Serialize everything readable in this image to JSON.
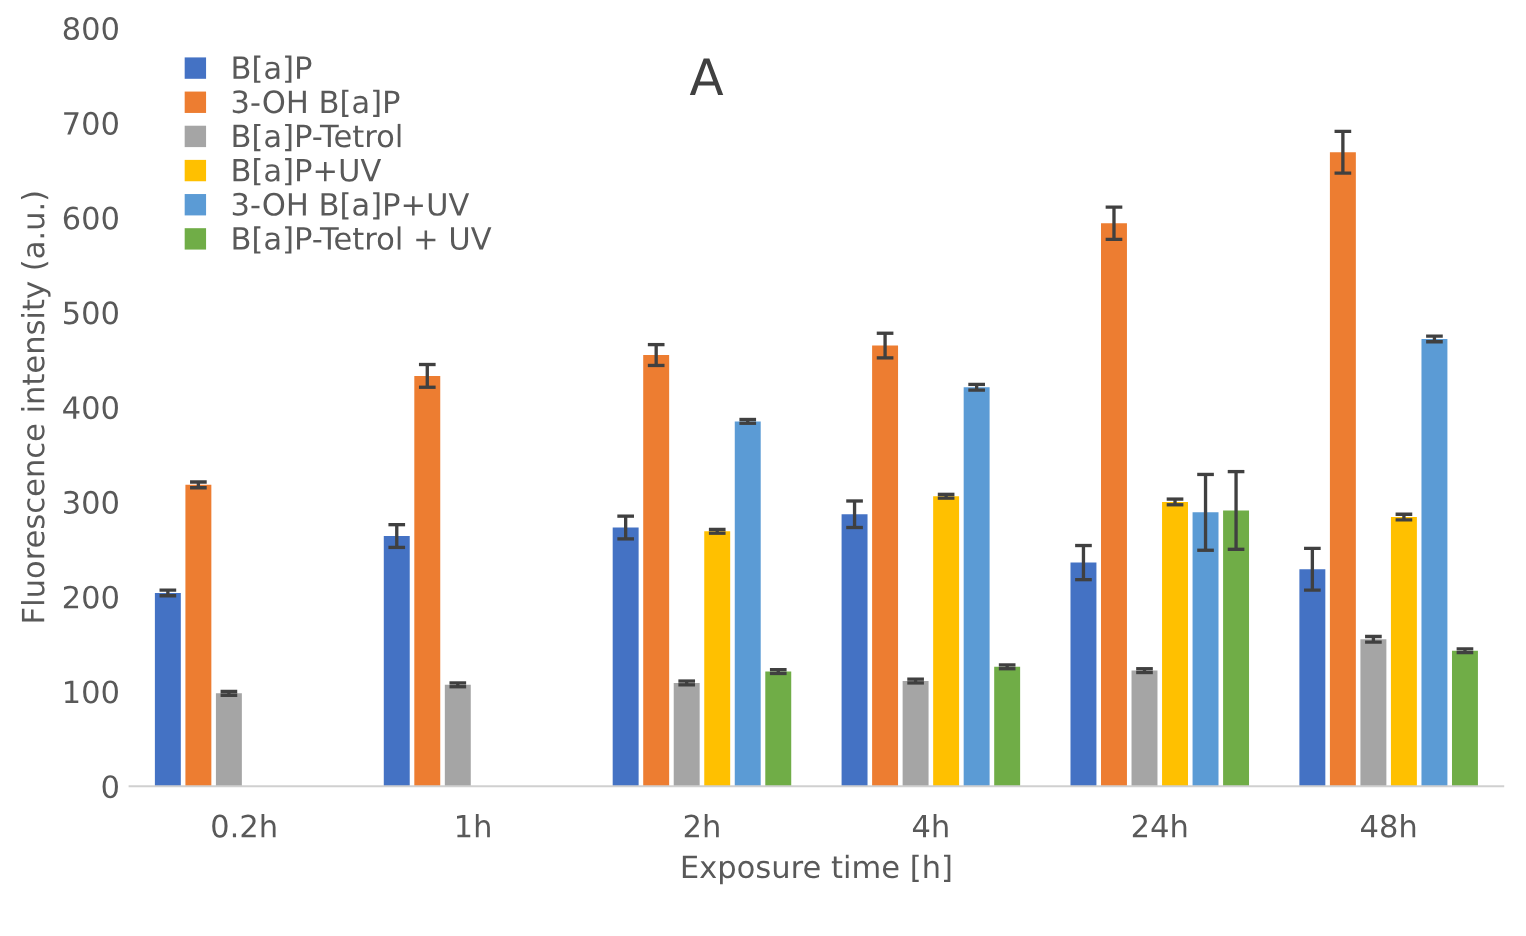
{
  "chart_data": {
    "type": "bar",
    "title": "A",
    "xlabel": "Exposure time [h]",
    "ylabel": "Fluorescence intensity (a.u.)",
    "categories": [
      "0.2h",
      "1h",
      "2h",
      "4h",
      "24h",
      "48h"
    ],
    "series": [
      {
        "name": "B[a]P",
        "color": "#4472c4",
        "values": [
          204,
          264,
          273,
          287,
          236,
          229
        ],
        "errors": [
          3,
          12,
          12,
          14,
          18,
          22
        ]
      },
      {
        "name": "3-OH B[a]P",
        "color": "#ed7d31",
        "values": [
          318,
          433,
          455,
          465,
          594,
          669
        ],
        "errors": [
          3,
          12,
          11,
          13,
          17,
          22
        ]
      },
      {
        "name": "B[a]P-Tetrol",
        "color": "#a5a5a5",
        "values": [
          98,
          107,
          109,
          111,
          122,
          155
        ],
        "errors": [
          2,
          2,
          2,
          2,
          2,
          3
        ]
      },
      {
        "name": "B[a]P+UV",
        "color": "#ffc000",
        "values": [
          null,
          null,
          269,
          306,
          300,
          284
        ],
        "errors": [
          null,
          null,
          2,
          2,
          3,
          3
        ]
      },
      {
        "name": "3-OH B[a]P+UV",
        "color": "#5b9bd5",
        "values": [
          null,
          null,
          385,
          421,
          289,
          472
        ],
        "errors": [
          null,
          null,
          2,
          3,
          40,
          3
        ]
      },
      {
        "name": "B[a]P-Tetrol + UV",
        "color": "#70ad47",
        "values": [
          null,
          null,
          121,
          126,
          291,
          143
        ],
        "errors": [
          null,
          null,
          2,
          2,
          41,
          2
        ]
      }
    ],
    "ylim": [
      0,
      800
    ],
    "yticks": [
      0,
      100,
      200,
      300,
      400,
      500,
      600,
      700,
      800
    ],
    "grid": false,
    "legend": "top left"
  }
}
